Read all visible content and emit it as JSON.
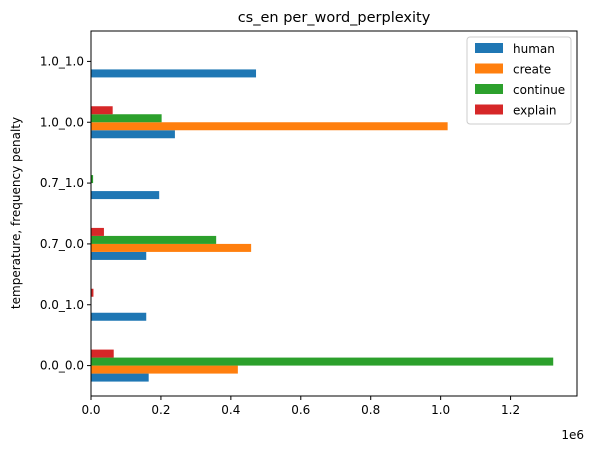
{
  "chart_data": {
    "type": "bar",
    "orientation": "horizontal",
    "title": "cs_en per_word_perplexity",
    "xlabel": "",
    "ylabel": "temperature, frequency penalty",
    "x_offset_label": "1e6",
    "xlim": [
      0,
      1.39
    ],
    "xticks": [
      0,
      0.2,
      0.4,
      0.6,
      0.8,
      1.0,
      1.2
    ],
    "xtick_labels": [
      "0.0",
      "0.2",
      "0.4",
      "0.6",
      "0.8",
      "1.0",
      "1.2"
    ],
    "categories": [
      "0.0_0.0",
      "0.0_1.0",
      "0.7_0.0",
      "0.7_1.0",
      "1.0_0.0",
      "1.0_1.0"
    ],
    "series": [
      {
        "name": "human",
        "color": "#1f77b4",
        "values": [
          0.165,
          0.158,
          0.158,
          0.195,
          0.24,
          0.472
        ]
      },
      {
        "name": "create",
        "color": "#ff7f0e",
        "values": [
          0.42,
          0.0,
          0.458,
          0.0,
          1.02,
          0.0
        ]
      },
      {
        "name": "continue",
        "color": "#2ca02c",
        "values": [
          1.322,
          0.0,
          0.358,
          0.006,
          0.202,
          0.0
        ]
      },
      {
        "name": "explain",
        "color": "#d62728",
        "values": [
          0.065,
          0.007,
          0.037,
          0.0,
          0.062,
          0.0
        ]
      }
    ],
    "legend_position": "top-right",
    "grid": false
  }
}
